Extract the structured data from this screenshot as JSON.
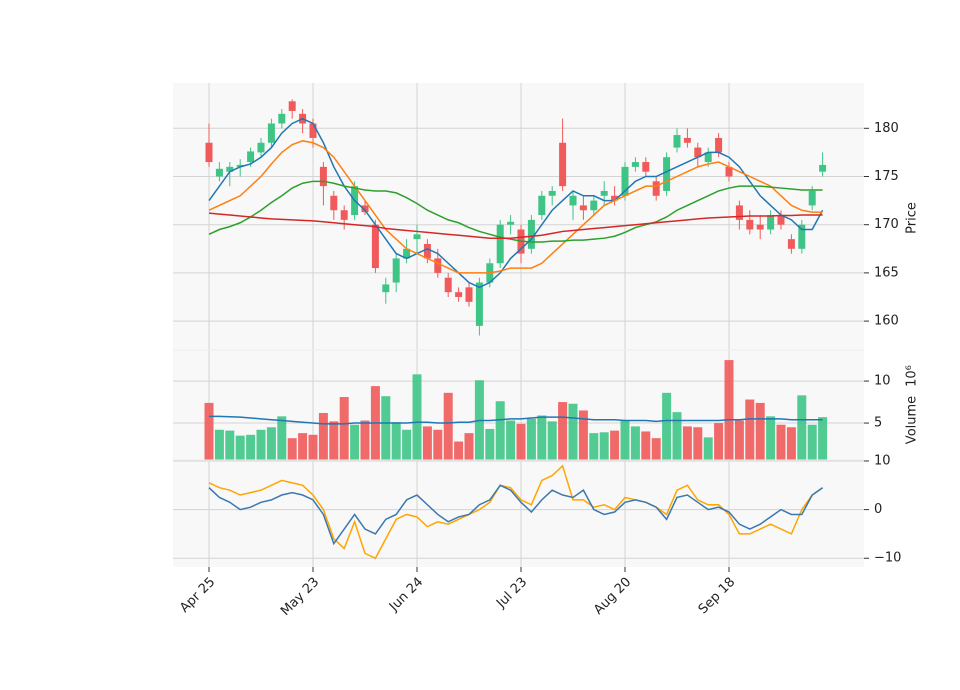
{
  "chart_data": {
    "type": "candlestick",
    "categories": [
      "Apr 25",
      null,
      null,
      null,
      null,
      null,
      null,
      null,
      null,
      null,
      "May 23",
      null,
      null,
      null,
      null,
      null,
      null,
      null,
      null,
      null,
      "Jun 24",
      null,
      null,
      null,
      null,
      null,
      null,
      null,
      null,
      null,
      "Jul 23",
      null,
      null,
      null,
      null,
      null,
      null,
      null,
      null,
      null,
      "Aug 20",
      null,
      null,
      null,
      null,
      null,
      null,
      null,
      null,
      null,
      "Sep 18",
      null,
      null,
      null,
      null,
      null,
      null,
      null,
      null,
      null
    ],
    "open": [
      178.5,
      175,
      175.5,
      176,
      176.5,
      177.5,
      178.5,
      180.5,
      182.8,
      181.5,
      180.5,
      176,
      173,
      171.5,
      171,
      172,
      170,
      163,
      164,
      166.5,
      168.5,
      168,
      166.5,
      164.5,
      163,
      163.5,
      159.5,
      164,
      166,
      170,
      169.5,
      167.5,
      171,
      173,
      178.5,
      172,
      172,
      171.5,
      173,
      173,
      173,
      176,
      176.5,
      174.5,
      173.5,
      178,
      179,
      178,
      176.5,
      179,
      176,
      172,
      170.5,
      170,
      169.5,
      171,
      168.5,
      167.5,
      172,
      175.5
    ],
    "high": [
      180.5,
      176.5,
      176.5,
      176.8,
      178,
      179,
      181,
      182,
      183,
      182,
      181,
      176.5,
      173.5,
      172,
      174.5,
      172.5,
      170.5,
      164.5,
      167,
      168.5,
      170,
      168.5,
      167.5,
      165,
      163.5,
      164,
      164.5,
      166.5,
      170.5,
      171,
      170,
      171,
      173.5,
      174,
      181,
      173.5,
      173,
      173,
      174.5,
      174,
      176.5,
      177,
      177,
      175,
      177.5,
      180,
      180,
      178.5,
      178,
      179.5,
      176.5,
      172.5,
      171.5,
      171,
      171.5,
      171.5,
      169,
      170.5,
      174,
      177.5
    ],
    "low": [
      176,
      174.5,
      174,
      175,
      176,
      177,
      178,
      180,
      181,
      179.5,
      178,
      172,
      170.5,
      169.5,
      170.5,
      171,
      165,
      161.8,
      163,
      166,
      167,
      166,
      164.5,
      162.5,
      162,
      161.5,
      158.5,
      163.5,
      165.5,
      169,
      166,
      167,
      170.5,
      172,
      173.5,
      170.5,
      170.5,
      171,
      172,
      172,
      172.5,
      175.5,
      175,
      172.5,
      173,
      177.5,
      178,
      176,
      176,
      177,
      174.5,
      169.5,
      169,
      168.5,
      169,
      169.5,
      167,
      167,
      171.5,
      175
    ],
    "close": [
      176.5,
      175.8,
      176,
      176.2,
      177.6,
      178.5,
      180.5,
      181.5,
      181.8,
      180.5,
      179,
      174,
      171.5,
      170.5,
      174,
      171.3,
      165.5,
      163.8,
      166.5,
      167.5,
      169,
      166.5,
      165,
      163,
      162.5,
      162,
      164,
      166,
      170,
      170.3,
      167,
      170.5,
      173,
      173.5,
      174,
      173,
      171.5,
      172.5,
      173.5,
      172.5,
      176,
      176.5,
      175.5,
      173,
      177,
      179.3,
      178.5,
      177,
      177.5,
      177.5,
      175,
      170.5,
      169.5,
      169.5,
      171,
      170,
      167.5,
      170,
      173.5,
      176.2
    ],
    "up_color": "#3ec586",
    "down_color": "#f05a5a",
    "ylim": [
      157,
      184.7
    ],
    "yticks": [
      160,
      165,
      170,
      175,
      180
    ],
    "ylabel": "Price",
    "grid": true,
    "moving_averages": [
      {
        "color": "#1f77b4",
        "values": [
          172.5,
          174,
          175.5,
          176,
          176.3,
          177,
          178,
          179.5,
          180.5,
          181,
          180.5,
          178.5,
          176,
          174,
          172.5,
          171.5,
          170,
          168.5,
          167,
          166.5,
          167,
          167.5,
          167,
          166,
          165,
          164,
          163.5,
          164,
          165,
          166.5,
          167.5,
          168.5,
          170,
          171.5,
          172.5,
          173.5,
          173,
          173,
          172.5,
          172.5,
          173.5,
          174.5,
          175,
          175,
          175.5,
          176,
          176.5,
          177,
          177.5,
          177.5,
          177,
          176,
          174.5,
          173,
          172,
          171,
          170.5,
          169.5,
          169.5,
          171.5
        ]
      },
      {
        "color": "#ff7f0e",
        "values": [
          171.5,
          172,
          172.5,
          173,
          174,
          175,
          176.3,
          177.5,
          178.3,
          178.7,
          178.5,
          178,
          177,
          175.5,
          174,
          172.5,
          171,
          169.5,
          168.5,
          167.5,
          167,
          166.5,
          166,
          165.5,
          165,
          165,
          165,
          165,
          165.2,
          165.5,
          165.5,
          165.5,
          166,
          167,
          168,
          169,
          170,
          171,
          172,
          172.5,
          173,
          173.5,
          174,
          174,
          174.5,
          175,
          175.5,
          176,
          176.3,
          176.5,
          176,
          175.5,
          175,
          174.5,
          174,
          173,
          172,
          171.5,
          171.3,
          171.3
        ]
      },
      {
        "color": "#2ca02c",
        "values": [
          169,
          169.5,
          169.8,
          170.2,
          170.8,
          171.5,
          172.3,
          173,
          173.8,
          174.3,
          174.5,
          174.5,
          174.3,
          174,
          173.8,
          173.6,
          173.5,
          173.5,
          173.3,
          172.8,
          172.2,
          171.5,
          171,
          170.5,
          170.2,
          169.7,
          169.3,
          169,
          168.7,
          168.5,
          168.3,
          168.2,
          168.2,
          168.3,
          168.3,
          168.4,
          168.4,
          168.5,
          168.6,
          168.8,
          169.2,
          169.7,
          170,
          170.3,
          170.8,
          171.5,
          172,
          172.5,
          173,
          173.5,
          173.8,
          174,
          174,
          174,
          173.9,
          173.8,
          173.7,
          173.6,
          173.6,
          173.6
        ]
      },
      {
        "color": "#d62728",
        "values": [
          171.2,
          171.1,
          171,
          170.9,
          170.8,
          170.7,
          170.6,
          170.55,
          170.5,
          170.45,
          170.4,
          170.3,
          170.2,
          170.1,
          170,
          169.9,
          169.8,
          169.6,
          169.5,
          169.4,
          169.3,
          169.2,
          169.1,
          169,
          168.9,
          168.8,
          168.7,
          168.6,
          168.6,
          168.6,
          168.7,
          168.8,
          168.9,
          169.1,
          169.3,
          169.4,
          169.5,
          169.6,
          169.7,
          169.8,
          169.9,
          170,
          170.1,
          170.2,
          170.3,
          170.4,
          170.5,
          170.6,
          170.7,
          170.75,
          170.8,
          170.85,
          170.9,
          170.9,
          170.9,
          170.95,
          170.95,
          171,
          171,
          171
        ]
      }
    ],
    "volume": {
      "ylabel": "Volume",
      "offset_label": "10⁶",
      "ylim": [
        0.6,
        13.7
      ],
      "yticks": [
        5,
        10
      ],
      "values": [
        7.4,
        4.2,
        4.1,
        3.5,
        3.6,
        4.2,
        4.5,
        5.8,
        3.2,
        3.8,
        3.6,
        6.2,
        5.2,
        8.1,
        4.8,
        5.3,
        9.4,
        8.2,
        5.1,
        4.2,
        10.8,
        4.6,
        4.2,
        8.6,
        2.8,
        3.8,
        10.1,
        4.3,
        7.6,
        5.3,
        4.9,
        5.5,
        5.9,
        5.2,
        7.5,
        7.3,
        6.5,
        3.8,
        3.9,
        4.1,
        5.3,
        4.6,
        4.0,
        3.2,
        8.6,
        6.3,
        4.6,
        4.5,
        3.3,
        5.0,
        12.5,
        5.3,
        7.8,
        7.4,
        5.8,
        4.8,
        4.5,
        8.3,
        4.8,
        5.7
      ],
      "average": {
        "color": "#1f77b4",
        "values": [
          5.8,
          5.8,
          5.75,
          5.7,
          5.6,
          5.5,
          5.4,
          5.3,
          5.2,
          5.1,
          5.0,
          4.9,
          4.9,
          4.9,
          5.0,
          5.0,
          5.0,
          5.0,
          5.0,
          5.0,
          5.1,
          5.1,
          5.0,
          5.0,
          5.1,
          5.1,
          5.3,
          5.3,
          5.4,
          5.5,
          5.5,
          5.6,
          5.7,
          5.7,
          5.7,
          5.6,
          5.5,
          5.4,
          5.4,
          5.4,
          5.3,
          5.3,
          5.3,
          5.2,
          5.3,
          5.3,
          5.3,
          5.3,
          5.3,
          5.3,
          5.4,
          5.4,
          5.5,
          5.5,
          5.5,
          5.5,
          5.4,
          5.4,
          5.4,
          5.4
        ]
      }
    },
    "oscillator": {
      "ylim": [
        -11.8,
        10.2
      ],
      "yticks": [
        {
          "value": -10,
          "label": "−10"
        },
        0,
        10
      ],
      "series": [
        {
          "color": "#ffa500",
          "values": [
            5.5,
            4.5,
            4,
            3,
            3.5,
            4,
            5,
            6,
            5.5,
            5,
            3,
            0,
            -6,
            -8,
            -2.5,
            -9,
            -10,
            -6,
            -2,
            -1,
            -1.5,
            -3.5,
            -2.5,
            -3,
            -2,
            -1,
            0,
            1.5,
            5,
            4.5,
            2,
            1,
            6,
            7,
            9,
            2,
            2,
            0.5,
            1,
            0,
            2.5,
            2,
            1.5,
            0.5,
            -1,
            4,
            5,
            2,
            1,
            1,
            -1,
            -5,
            -5,
            -4,
            -3,
            -4,
            -5,
            0,
            3,
            4.5
          ]
        },
        {
          "color": "#3b78b0",
          "values": [
            4.5,
            2.5,
            1.5,
            0,
            0.5,
            1.5,
            2,
            3,
            3.5,
            3,
            2,
            -1,
            -7,
            -4,
            -1,
            -4,
            -5,
            -2,
            -1,
            2,
            3,
            1,
            -1,
            -2.5,
            -1.5,
            -1,
            1,
            2,
            5,
            4,
            1.5,
            -0.5,
            2,
            4,
            3,
            2.5,
            4,
            0,
            -1,
            -0.5,
            1.5,
            2,
            1.5,
            0.5,
            -2,
            2.5,
            3,
            1.5,
            0,
            0.5,
            -0.5,
            -3,
            -4,
            -3,
            -1.5,
            0,
            -1,
            -1,
            3,
            4.5
          ]
        }
      ]
    }
  }
}
